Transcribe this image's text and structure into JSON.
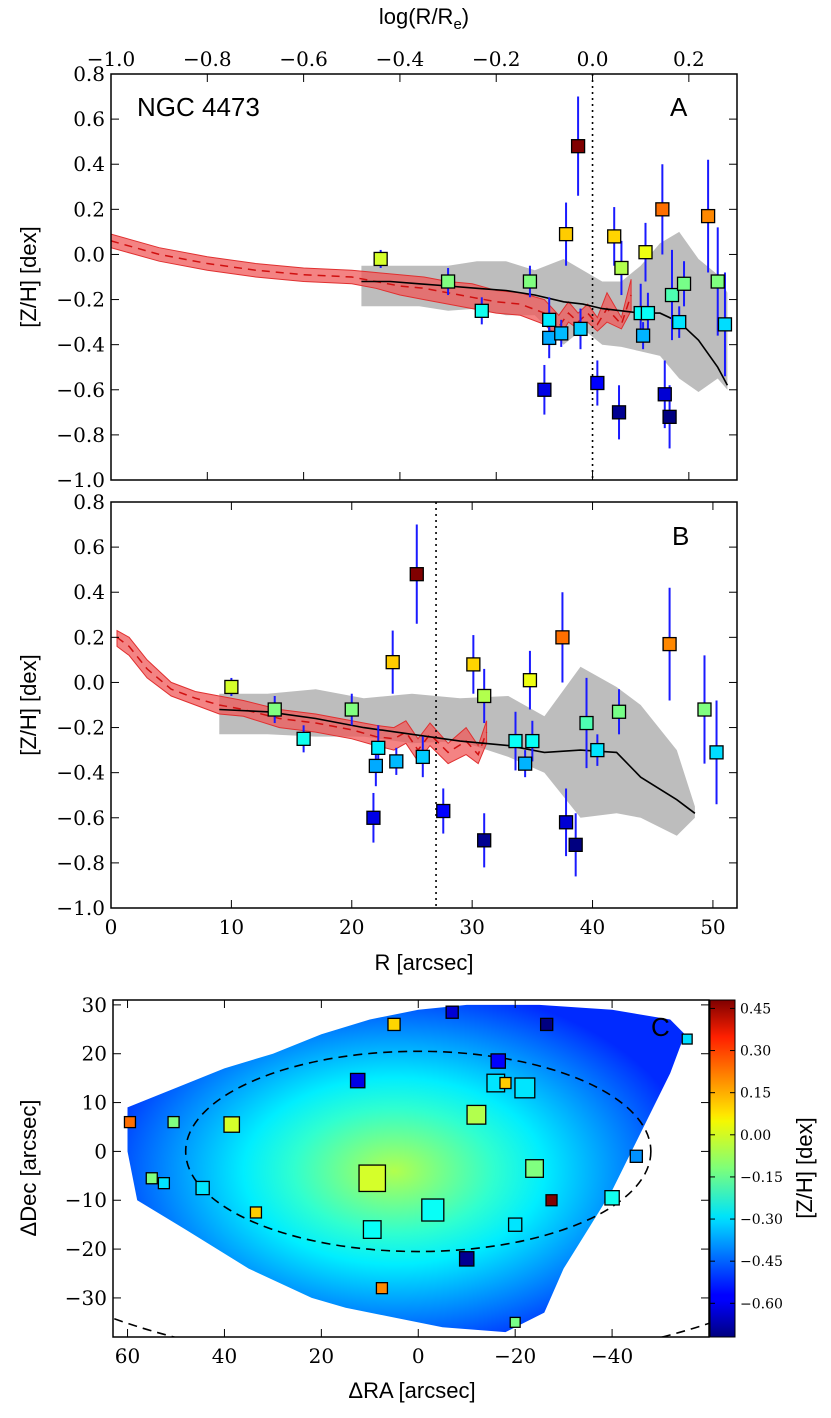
{
  "chart_data": [
    {
      "panel": "A",
      "type": "scatter",
      "title": "NGC 4473",
      "panel_label": "A",
      "xlabel_top": "log(R/R",
      "xlabel_top_sub": "e",
      "xlabel_top_end": ")",
      "ylabel": "[Z/H] [dex]",
      "xlim": [
        -1.0,
        0.3
      ],
      "ylim": [
        -1.0,
        0.8
      ],
      "xticks": [
        -1.0,
        -0.8,
        -0.6,
        -0.4,
        -0.2,
        0.0,
        0.2
      ],
      "xtick_labels": [
        "−1.0",
        "−0.8",
        "−0.6",
        "−0.4",
        "−0.2",
        "0.0",
        "0.2"
      ],
      "yticks": [
        -1.0,
        -0.8,
        -0.6,
        -0.4,
        -0.2,
        0.0,
        0.2,
        0.4,
        0.6,
        0.8
      ],
      "ytick_labels": [
        "−1.0",
        "−0.8",
        "−0.6",
        "−0.4",
        "−0.2",
        "0.0",
        "0.2",
        "0.4",
        "0.6",
        "0.8"
      ],
      "vline_x": 0.0,
      "points": [
        {
          "x": -0.44,
          "y": -0.02,
          "err": 0.04
        },
        {
          "x": -0.3,
          "y": -0.12,
          "err": 0.06
        },
        {
          "x": -0.23,
          "y": -0.25,
          "err": 0.06
        },
        {
          "x": -0.13,
          "y": -0.12,
          "err": 0.07
        },
        {
          "x": -0.1,
          "y": -0.6,
          "err": 0.11
        },
        {
          "x": -0.09,
          "y": -0.37,
          "err": 0.09
        },
        {
          "x": -0.09,
          "y": -0.29,
          "err": 0.1
        },
        {
          "x": -0.065,
          "y": -0.35,
          "err": 0.06
        },
        {
          "x": -0.055,
          "y": 0.09,
          "err": 0.14
        },
        {
          "x": -0.03,
          "y": 0.48,
          "err": 0.22
        },
        {
          "x": -0.025,
          "y": -0.33,
          "err": 0.09
        },
        {
          "x": 0.01,
          "y": -0.57,
          "err": 0.1
        },
        {
          "x": 0.045,
          "y": 0.08,
          "err": 0.13
        },
        {
          "x": 0.055,
          "y": -0.7,
          "err": 0.12
        },
        {
          "x": 0.06,
          "y": -0.06,
          "err": 0.12
        },
        {
          "x": 0.1,
          "y": -0.26,
          "err": 0.13
        },
        {
          "x": 0.105,
          "y": -0.36,
          "err": 0.06
        },
        {
          "x": 0.11,
          "y": 0.01,
          "err": 0.13
        },
        {
          "x": 0.115,
          "y": -0.26,
          "err": 0.09
        },
        {
          "x": 0.145,
          "y": 0.2,
          "err": 0.2
        },
        {
          "x": 0.15,
          "y": -0.62,
          "err": 0.15
        },
        {
          "x": 0.16,
          "y": -0.72,
          "err": 0.14
        },
        {
          "x": 0.165,
          "y": -0.18,
          "err": 0.2
        },
        {
          "x": 0.18,
          "y": -0.3,
          "err": 0.07
        },
        {
          "x": 0.19,
          "y": -0.13,
          "err": 0.1
        },
        {
          "x": 0.24,
          "y": 0.17,
          "err": 0.25
        },
        {
          "x": 0.26,
          "y": -0.12,
          "err": 0.24
        },
        {
          "x": 0.275,
          "y": -0.31,
          "err": 0.23
        }
      ],
      "model_band_x": [
        -1.0,
        -0.9,
        -0.8,
        -0.7,
        -0.6,
        -0.5,
        -0.45,
        -0.4,
        -0.35,
        -0.3,
        -0.25,
        -0.2,
        -0.15,
        -0.1,
        -0.07,
        -0.05,
        -0.03,
        -0.01,
        0.01,
        0.03,
        0.06,
        0.08
      ],
      "model_band_lo": [
        0.03,
        -0.03,
        -0.07,
        -0.1,
        -0.12,
        -0.13,
        -0.15,
        -0.18,
        -0.2,
        -0.22,
        -0.24,
        -0.26,
        -0.27,
        -0.31,
        -0.37,
        -0.3,
        -0.33,
        -0.3,
        -0.34,
        -0.3,
        -0.33,
        -0.25
      ],
      "model_band_hi": [
        0.09,
        0.03,
        -0.01,
        -0.04,
        -0.06,
        -0.07,
        -0.08,
        -0.09,
        -0.1,
        -0.12,
        -0.13,
        -0.16,
        -0.17,
        -0.2,
        -0.27,
        -0.21,
        -0.26,
        -0.22,
        -0.28,
        -0.17,
        -0.28,
        -0.11
      ],
      "model_mean": [
        0.06,
        0.0,
        -0.04,
        -0.07,
        -0.09,
        -0.1,
        -0.12,
        -0.14,
        -0.15,
        -0.17,
        -0.19,
        -0.21,
        -0.22,
        -0.26,
        -0.32,
        -0.26,
        -0.3,
        -0.26,
        -0.31,
        -0.24,
        -0.31,
        -0.18
      ],
      "data_band_x": [
        -0.48,
        -0.42,
        -0.36,
        -0.3,
        -0.24,
        -0.18,
        -0.12,
        -0.06,
        -0.02,
        0.02,
        0.06,
        0.1,
        0.14,
        0.18,
        0.22,
        0.26,
        0.28
      ],
      "data_band_lo": [
        -0.23,
        -0.23,
        -0.23,
        -0.25,
        -0.24,
        -0.27,
        -0.27,
        -0.4,
        -0.33,
        -0.4,
        -0.41,
        -0.43,
        -0.45,
        -0.55,
        -0.61,
        -0.55,
        -0.6
      ],
      "data_band_hi": [
        -0.05,
        -0.05,
        -0.05,
        -0.05,
        -0.03,
        -0.03,
        -0.07,
        -0.02,
        -0.07,
        -0.12,
        -0.12,
        -0.05,
        0.05,
        0.1,
        -0.02,
        -0.09,
        -0.17
      ],
      "data_mean": [
        -0.12,
        -0.12,
        -0.13,
        -0.14,
        -0.15,
        -0.16,
        -0.18,
        -0.21,
        -0.22,
        -0.24,
        -0.25,
        -0.26,
        -0.26,
        -0.3,
        -0.38,
        -0.5,
        -0.58
      ]
    },
    {
      "panel": "B",
      "type": "scatter",
      "panel_label": "B",
      "xlabel": "R [arcsec]",
      "ylabel": "[Z/H] [dex]",
      "xlim": [
        0,
        52
      ],
      "ylim": [
        -1.0,
        0.8
      ],
      "xticks": [
        0,
        10,
        20,
        30,
        40,
        50
      ],
      "xtick_labels": [
        "0",
        "10",
        "20",
        "30",
        "40",
        "50"
      ],
      "yticks": [
        -1.0,
        -0.8,
        -0.6,
        -0.4,
        -0.2,
        0.0,
        0.2,
        0.4,
        0.6,
        0.8
      ],
      "ytick_labels": [
        "−1.0",
        "−0.8",
        "−0.6",
        "−0.4",
        "−0.2",
        "0.0",
        "0.2",
        "0.4",
        "0.6",
        "0.8"
      ],
      "vline_x": 27.0,
      "points": [
        {
          "x": 10.0,
          "y": -0.02,
          "err": 0.04
        },
        {
          "x": 13.6,
          "y": -0.12,
          "err": 0.06
        },
        {
          "x": 16.0,
          "y": -0.25,
          "err": 0.06
        },
        {
          "x": 20.0,
          "y": -0.12,
          "err": 0.07
        },
        {
          "x": 21.8,
          "y": -0.6,
          "err": 0.11
        },
        {
          "x": 22.0,
          "y": -0.37,
          "err": 0.09
        },
        {
          "x": 22.2,
          "y": -0.29,
          "err": 0.1
        },
        {
          "x": 23.7,
          "y": -0.35,
          "err": 0.06
        },
        {
          "x": 23.4,
          "y": 0.09,
          "err": 0.14
        },
        {
          "x": 25.4,
          "y": 0.48,
          "err": 0.22
        },
        {
          "x": 25.9,
          "y": -0.33,
          "err": 0.09
        },
        {
          "x": 27.6,
          "y": -0.57,
          "err": 0.1
        },
        {
          "x": 30.1,
          "y": 0.08,
          "err": 0.13
        },
        {
          "x": 31.0,
          "y": -0.7,
          "err": 0.12
        },
        {
          "x": 31.0,
          "y": -0.06,
          "err": 0.12
        },
        {
          "x": 33.6,
          "y": -0.26,
          "err": 0.13
        },
        {
          "x": 34.4,
          "y": -0.36,
          "err": 0.06
        },
        {
          "x": 34.8,
          "y": 0.01,
          "err": 0.13
        },
        {
          "x": 35.0,
          "y": -0.26,
          "err": 0.09
        },
        {
          "x": 37.5,
          "y": 0.2,
          "err": 0.2
        },
        {
          "x": 37.8,
          "y": -0.62,
          "err": 0.15
        },
        {
          "x": 38.6,
          "y": -0.72,
          "err": 0.14
        },
        {
          "x": 39.5,
          "y": -0.18,
          "err": 0.2
        },
        {
          "x": 40.4,
          "y": -0.3,
          "err": 0.07
        },
        {
          "x": 42.2,
          "y": -0.13,
          "err": 0.1
        },
        {
          "x": 46.4,
          "y": 0.17,
          "err": 0.25
        },
        {
          "x": 49.3,
          "y": -0.12,
          "err": 0.24
        },
        {
          "x": 50.3,
          "y": -0.31,
          "err": 0.23
        }
      ],
      "model_band_x": [
        0.5,
        1.5,
        3,
        5,
        7,
        9,
        11,
        14,
        17,
        20,
        22,
        23.5,
        24.5,
        25.5,
        26.5,
        28,
        29.5,
        30.5,
        31.2
      ],
      "model_band_lo": [
        0.16,
        0.12,
        0.02,
        -0.06,
        -0.1,
        -0.14,
        -0.15,
        -0.2,
        -0.22,
        -0.25,
        -0.28,
        -0.3,
        -0.27,
        -0.35,
        -0.28,
        -0.36,
        -0.32,
        -0.36,
        -0.27
      ],
      "model_band_hi": [
        0.23,
        0.2,
        0.1,
        0.0,
        -0.04,
        -0.06,
        -0.08,
        -0.12,
        -0.14,
        -0.17,
        -0.19,
        -0.2,
        -0.17,
        -0.25,
        -0.18,
        -0.27,
        -0.2,
        -0.28,
        -0.17
      ],
      "model_mean": [
        0.2,
        0.16,
        0.06,
        -0.03,
        -0.07,
        -0.1,
        -0.12,
        -0.16,
        -0.18,
        -0.21,
        -0.24,
        -0.25,
        -0.22,
        -0.3,
        -0.23,
        -0.31,
        -0.26,
        -0.32,
        -0.22
      ],
      "data_band_x": [
        9,
        13,
        17,
        21,
        25,
        29,
        33,
        36,
        39,
        42,
        44,
        47,
        48.5
      ],
      "data_band_lo": [
        -0.23,
        -0.23,
        -0.24,
        -0.24,
        -0.27,
        -0.26,
        -0.33,
        -0.4,
        -0.6,
        -0.58,
        -0.6,
        -0.68,
        -0.6
      ],
      "data_band_hi": [
        -0.05,
        -0.05,
        -0.03,
        -0.07,
        -0.05,
        -0.07,
        -0.06,
        -0.15,
        0.07,
        -0.02,
        -0.1,
        -0.3,
        -0.55
      ],
      "data_mean": [
        -0.12,
        -0.13,
        -0.16,
        -0.2,
        -0.23,
        -0.26,
        -0.28,
        -0.31,
        -0.3,
        -0.31,
        -0.42,
        -0.52,
        -0.58
      ]
    },
    {
      "panel": "C",
      "type": "heatmap",
      "panel_label": "C",
      "xlabel": "ΔRA [arcsec]",
      "ylabel": "ΔDec [arcsec]",
      "colorbar_label": "[Z/H] [dex]",
      "xlim": [
        63,
        -60
      ],
      "ylim": [
        -38,
        31
      ],
      "xticks": [
        60,
        40,
        20,
        0,
        -20,
        -40
      ],
      "xtick_labels": [
        "60",
        "40",
        "20",
        "0",
        "−20",
        "−40"
      ],
      "yticks": [
        -30,
        -20,
        -10,
        0,
        10,
        20,
        30
      ],
      "ytick_labels": [
        "−30",
        "−20",
        "−10",
        "0",
        "10",
        "20",
        "30"
      ],
      "colorbar_range": [
        -0.72,
        0.48
      ],
      "colorbar_ticks": [
        0.45,
        0.3,
        0.15,
        0.0,
        -0.15,
        -0.3,
        -0.45,
        -0.6
      ],
      "colorbar_tick_labels": [
        "0.45",
        "0.30",
        "0.15",
        "0.00",
        "−0.15",
        "−0.30",
        "−0.45",
        "−0.60"
      ],
      "map_outline": [
        [
          60,
          9
        ],
        [
          50,
          13
        ],
        [
          40,
          17
        ],
        [
          30,
          20
        ],
        [
          20,
          24
        ],
        [
          10,
          27
        ],
        [
          0,
          29
        ],
        [
          -10,
          30
        ],
        [
          -25,
          30
        ],
        [
          -40,
          29
        ],
        [
          -52,
          27
        ],
        [
          -55,
          24
        ],
        [
          -52,
          16
        ],
        [
          -48,
          8
        ],
        [
          -44,
          0
        ],
        [
          -40,
          -8
        ],
        [
          -35,
          -16
        ],
        [
          -30,
          -24
        ],
        [
          -26,
          -33
        ],
        [
          -18,
          -37
        ],
        [
          -5,
          -36
        ],
        [
          5,
          -34
        ],
        [
          15,
          -32
        ],
        [
          22,
          -30
        ],
        [
          35,
          -24
        ],
        [
          48,
          -16
        ],
        [
          58,
          -10
        ],
        [
          60,
          0
        ]
      ],
      "map_center_z": -0.06,
      "map_edge_z": -0.52,
      "ellipses": [
        {
          "cx": 0,
          "cy": 0,
          "rx": 48,
          "ry": 20.5
        },
        {
          "cx": 0,
          "cy": 0,
          "rx": 100,
          "ry": 44
        }
      ],
      "squares": [
        {
          "ra": 59.5,
          "dec": 6,
          "z": 0.2,
          "size": 1.0
        },
        {
          "ra": 50.5,
          "dec": 6,
          "z": -0.12,
          "size": 1.0
        },
        {
          "ra": 55,
          "dec": -5.5,
          "z": -0.12,
          "size": 1.0
        },
        {
          "ra": 52.5,
          "dec": -6.5,
          "z": -0.3,
          "size": 1.0
        },
        {
          "ra": 44.5,
          "dec": -7.5,
          "z": -0.3,
          "size": 1.2
        },
        {
          "ra": 38.5,
          "dec": 5.5,
          "z": -0.02,
          "size": 1.4
        },
        {
          "ra": 33.5,
          "dec": -12.5,
          "z": 0.09,
          "size": 1.0
        },
        {
          "ra": 12.5,
          "dec": 14.5,
          "z": -0.6,
          "size": 1.3
        },
        {
          "ra": 9.5,
          "dec": -5.5,
          "z": -0.02,
          "size": 2.4
        },
        {
          "ra": 9.5,
          "dec": -16,
          "z": -0.26,
          "size": 1.6
        },
        {
          "ra": 7.5,
          "dec": -28,
          "z": 0.17,
          "size": 1.0
        },
        {
          "ra": 5,
          "dec": 26,
          "z": 0.08,
          "size": 1.1
        },
        {
          "ra": -3,
          "dec": -12,
          "z": -0.26,
          "size": 2.0
        },
        {
          "ra": -7,
          "dec": 28.5,
          "z": -0.62,
          "size": 1.1
        },
        {
          "ra": -10,
          "dec": -22,
          "z": -0.7,
          "size": 1.3
        },
        {
          "ra": -12,
          "dec": 7.5,
          "z": -0.06,
          "size": 1.7
        },
        {
          "ra": -16.5,
          "dec": 18.5,
          "z": -0.57,
          "size": 1.3
        },
        {
          "ra": -16,
          "dec": 14,
          "z": -0.3,
          "size": 1.6
        },
        {
          "ra": -18,
          "dec": 14,
          "z": 0.09,
          "size": 1.0
        },
        {
          "ra": -20,
          "dec": -15,
          "z": -0.3,
          "size": 1.2
        },
        {
          "ra": -20,
          "dec": -35,
          "z": -0.13,
          "size": 0.9
        },
        {
          "ra": -22,
          "dec": 13,
          "z": -0.3,
          "size": 1.8
        },
        {
          "ra": -24,
          "dec": -3.5,
          "z": -0.12,
          "size": 1.6
        },
        {
          "ra": -26.5,
          "dec": 26,
          "z": -0.72,
          "size": 1.1
        },
        {
          "ra": -27.5,
          "dec": -10,
          "z": 0.48,
          "size": 1.0
        },
        {
          "ra": -40,
          "dec": -9.5,
          "z": -0.25,
          "size": 1.3
        },
        {
          "ra": -45,
          "dec": -1,
          "z": -0.4,
          "size": 1.1
        },
        {
          "ra": -55.5,
          "dec": 23,
          "z": -0.31,
          "size": 0.9
        }
      ]
    }
  ]
}
